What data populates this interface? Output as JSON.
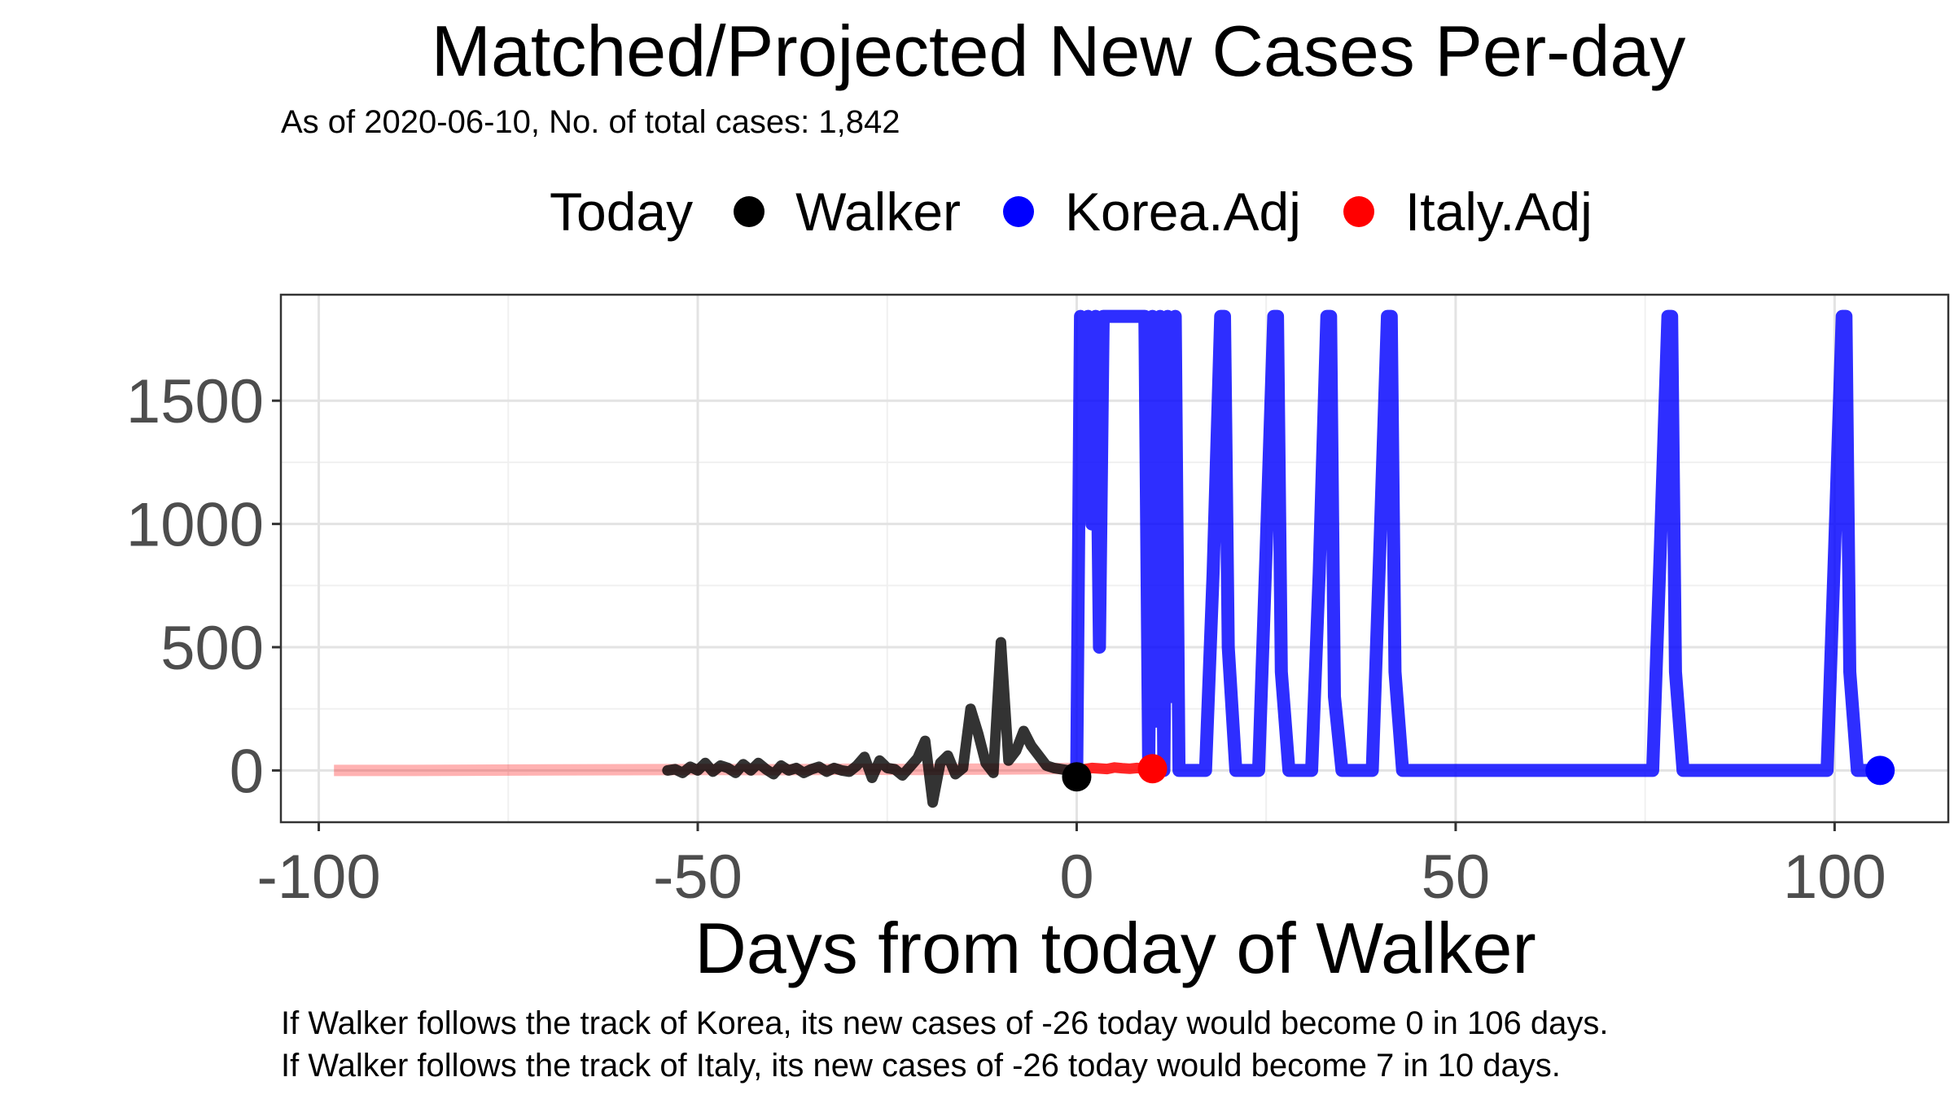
{
  "title": "Matched/Projected New Cases Per-day",
  "subtitle": "As of 2020-06-10, No. of total cases: 1,842",
  "legend": {
    "title": "Today",
    "items": [
      {
        "label": "Walker",
        "color": "#000000"
      },
      {
        "label": "Korea.Adj",
        "color": "#0000FF"
      },
      {
        "label": "Italy.Adj",
        "color": "#FF0000"
      }
    ]
  },
  "xlabel": "Days from today of Walker",
  "captions": [
    "If Walker follows the track of Korea, its new cases of -26 today would become 0 in 106 days.",
    "If Walker follows the track of Italy, its new cases of -26 today would become 7 in 10 days."
  ],
  "chart_data": {
    "type": "line",
    "xlim": [
      -105,
      115
    ],
    "ylim": [
      -210,
      1930
    ],
    "xticks": [
      -100,
      -50,
      0,
      50,
      100
    ],
    "yticks": [
      0,
      500,
      1000,
      1500
    ],
    "xtick_labels": [
      "-100",
      "-50",
      "0",
      "50",
      "100"
    ],
    "ytick_labels": [
      "0",
      "500",
      "1000",
      "1500"
    ],
    "grid": true,
    "legend_position": "top",
    "series": [
      {
        "name": "Italy.Adj",
        "color": "#FF0000",
        "note": "historical matched track (faded)",
        "x": [
          -98,
          -90,
          -80,
          -70,
          -60,
          -50,
          -40,
          -30,
          -20,
          -10,
          0
        ],
        "y": [
          0,
          0,
          1,
          2,
          3,
          4,
          3,
          5,
          4,
          6,
          8
        ]
      },
      {
        "name": "Walker",
        "color": "#000000",
        "x": [
          -54,
          -53,
          -52,
          -51,
          -50,
          -49,
          -48,
          -47,
          -46,
          -45,
          -44,
          -43,
          -42,
          -41,
          -40,
          -39,
          -38,
          -37,
          -36,
          -35,
          -34,
          -33,
          -32,
          -31,
          -30,
          -29,
          -28,
          -27,
          -26,
          -25,
          -24,
          -23,
          -22,
          -21,
          -20,
          -19,
          -18,
          -17,
          -16,
          -15,
          -14,
          -13,
          -12,
          -11,
          -10,
          -9,
          -8,
          -7,
          -6,
          -5,
          -4,
          -3,
          -2,
          -1,
          0
        ],
        "y": [
          0,
          5,
          -10,
          15,
          0,
          30,
          -5,
          20,
          10,
          -10,
          25,
          0,
          30,
          5,
          -15,
          20,
          0,
          10,
          -10,
          5,
          15,
          -5,
          10,
          0,
          -5,
          20,
          55,
          -30,
          40,
          10,
          5,
          -20,
          15,
          50,
          120,
          -130,
          30,
          60,
          -15,
          10,
          250,
          150,
          30,
          -10,
          520,
          40,
          80,
          160,
          100,
          60,
          20,
          10,
          5,
          0,
          -26
        ]
      },
      {
        "name": "Italy.Adj",
        "color": "#FF0000",
        "note": "projection",
        "x": [
          0,
          1,
          2,
          3,
          4,
          5,
          6,
          7,
          8,
          9,
          10
        ],
        "y": [
          0,
          5,
          10,
          8,
          6,
          12,
          9,
          7,
          10,
          6,
          7
        ]
      },
      {
        "name": "Korea.Adj",
        "color": "#0000FF",
        "note": "projection",
        "x": [
          0,
          0.5,
          1,
          1.5,
          2,
          2.5,
          3,
          3.5,
          4,
          4.5,
          5,
          7,
          9,
          9.5,
          10,
          10.5,
          11,
          11.5,
          12,
          12.5,
          13,
          13.5,
          14,
          17,
          18,
          19,
          19.5,
          20,
          21,
          24,
          25,
          26,
          26.5,
          27,
          28,
          31,
          32,
          33,
          33.5,
          34,
          35,
          39,
          40,
          41,
          41.5,
          42,
          43,
          76,
          77,
          78,
          78.5,
          79,
          80,
          99,
          100,
          101,
          101.5,
          102,
          103,
          106
        ],
        "y": [
          0,
          1842,
          1600,
          1842,
          1000,
          1842,
          500,
          1842,
          1842,
          1842,
          1842,
          1842,
          1842,
          0,
          1842,
          200,
          1842,
          0,
          1842,
          300,
          1842,
          0,
          0,
          0,
          800,
          1842,
          1842,
          500,
          0,
          0,
          900,
          1842,
          1842,
          400,
          0,
          0,
          800,
          1842,
          1842,
          300,
          0,
          0,
          900,
          1842,
          1842,
          400,
          0,
          0,
          900,
          1842,
          1842,
          400,
          0,
          0,
          900,
          1842,
          1842,
          400,
          0,
          0
        ]
      }
    ],
    "today_points": [
      {
        "name": "Walker",
        "x": 0,
        "y": -26,
        "color": "#000000"
      },
      {
        "name": "Italy.Adj",
        "x": 10,
        "y": 7,
        "color": "#FF0000"
      },
      {
        "name": "Korea.Adj",
        "x": 106,
        "y": 0,
        "color": "#0000FF"
      }
    ]
  }
}
